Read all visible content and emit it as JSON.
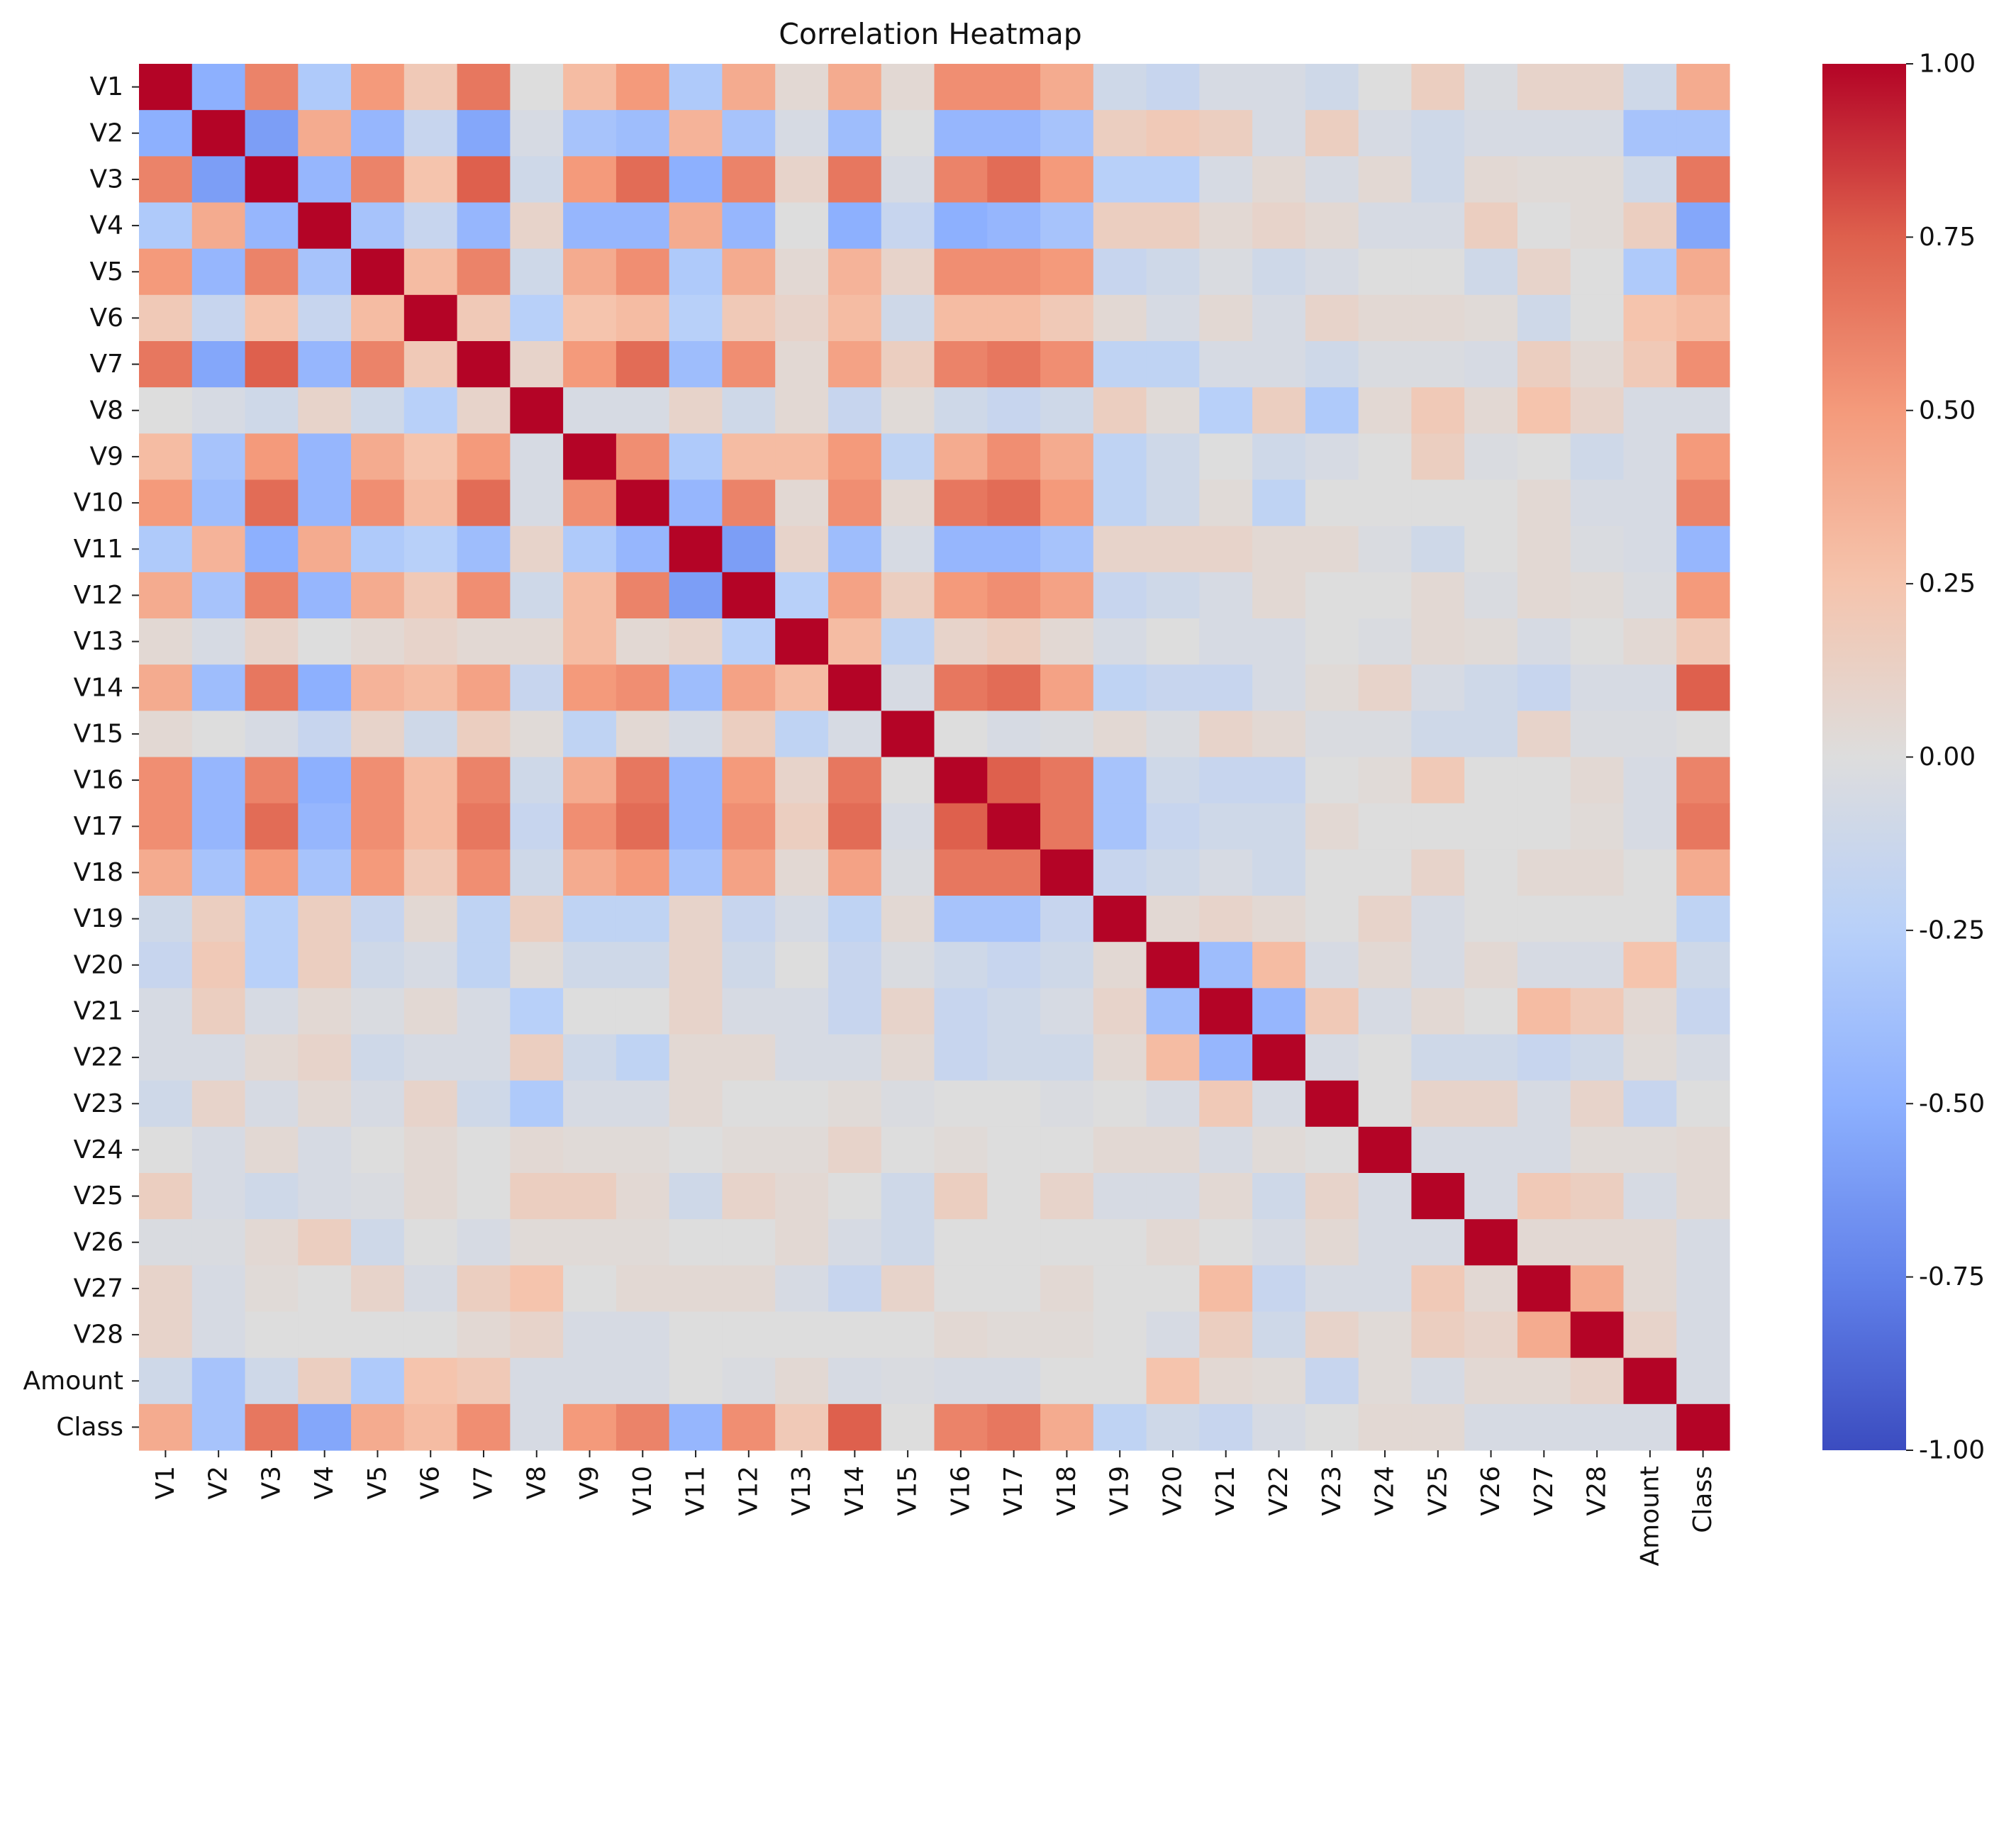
{
  "chart_data": {
    "type": "heatmap",
    "title": "Correlation Heatmap",
    "xlabel": "",
    "ylabel": "",
    "labels": [
      "V1",
      "V2",
      "V3",
      "V4",
      "V5",
      "V6",
      "V7",
      "V8",
      "V9",
      "V10",
      "V11",
      "V12",
      "V13",
      "V14",
      "V15",
      "V16",
      "V17",
      "V18",
      "V19",
      "V20",
      "V21",
      "V22",
      "V23",
      "V24",
      "V25",
      "V26",
      "V27",
      "V28",
      "Amount",
      "Class"
    ],
    "colormap": "coolwarm",
    "vmin": -1.0,
    "vmax": 1.0,
    "colorbar_ticks": [
      1.0,
      0.75,
      0.5,
      0.25,
      0.0,
      -0.25,
      -0.5,
      -0.75,
      -1.0
    ],
    "colorbar_tick_labels": [
      "1.00",
      "0.75",
      "0.50",
      "0.25",
      "0.00",
      "-0.25",
      "-0.50",
      "-0.75",
      "-1.00"
    ],
    "matrix": [
      [
        1.0,
        -0.5,
        0.6,
        -0.3,
        0.5,
        0.2,
        0.65,
        0.0,
        0.3,
        0.5,
        -0.3,
        0.4,
        0.05,
        0.4,
        0.05,
        0.55,
        0.55,
        0.4,
        -0.1,
        -0.15,
        -0.05,
        -0.05,
        -0.1,
        0.0,
        0.15,
        -0.03,
        0.1,
        0.1,
        -0.1,
        0.4
      ],
      [
        -0.5,
        1.0,
        -0.6,
        0.4,
        -0.45,
        -0.15,
        -0.55,
        -0.05,
        -0.35,
        -0.4,
        0.35,
        -0.35,
        -0.05,
        -0.4,
        0.0,
        -0.45,
        -0.45,
        -0.35,
        0.15,
        0.2,
        0.15,
        -0.05,
        0.15,
        -0.05,
        -0.1,
        -0.05,
        -0.05,
        -0.05,
        -0.35,
        -0.35
      ],
      [
        0.6,
        -0.6,
        1.0,
        -0.45,
        0.6,
        0.25,
        0.75,
        -0.1,
        0.5,
        0.7,
        -0.5,
        0.6,
        0.1,
        0.65,
        -0.05,
        0.6,
        0.7,
        0.5,
        -0.25,
        -0.25,
        -0.05,
        0.05,
        -0.05,
        0.05,
        -0.1,
        0.05,
        0.03,
        0.03,
        -0.1,
        0.65
      ],
      [
        -0.3,
        0.4,
        -0.45,
        1.0,
        -0.35,
        -0.15,
        -0.45,
        0.1,
        -0.45,
        -0.45,
        0.4,
        -0.45,
        0.0,
        -0.5,
        -0.15,
        -0.5,
        -0.45,
        -0.35,
        0.15,
        0.15,
        0.05,
        0.1,
        0.05,
        -0.05,
        -0.05,
        0.15,
        0.0,
        0.03,
        0.15,
        -0.55
      ],
      [
        0.5,
        -0.45,
        0.6,
        -0.35,
        1.0,
        0.3,
        0.6,
        -0.1,
        0.4,
        0.55,
        -0.3,
        0.4,
        0.05,
        0.35,
        0.1,
        0.55,
        0.55,
        0.5,
        -0.15,
        -0.1,
        -0.03,
        -0.1,
        -0.05,
        0.0,
        0.0,
        -0.1,
        0.1,
        0.0,
        -0.3,
        0.4
      ],
      [
        0.2,
        -0.15,
        0.25,
        -0.15,
        0.3,
        1.0,
        0.2,
        -0.25,
        0.25,
        0.3,
        -0.25,
        0.2,
        0.1,
        0.3,
        -0.1,
        0.3,
        0.3,
        0.2,
        0.05,
        -0.05,
        0.05,
        -0.05,
        0.1,
        0.05,
        0.05,
        0.03,
        -0.1,
        0.0,
        0.25,
        0.3
      ],
      [
        0.65,
        -0.55,
        0.75,
        -0.45,
        0.6,
        0.2,
        1.0,
        0.1,
        0.5,
        0.7,
        -0.4,
        0.55,
        0.05,
        0.45,
        0.15,
        0.6,
        0.65,
        0.55,
        -0.2,
        -0.2,
        -0.05,
        -0.05,
        -0.1,
        -0.03,
        -0.03,
        -0.05,
        0.15,
        0.05,
        0.2,
        0.55
      ],
      [
        0.0,
        -0.05,
        -0.1,
        0.1,
        -0.1,
        -0.25,
        0.1,
        1.0,
        -0.05,
        -0.05,
        0.1,
        -0.1,
        0.05,
        -0.15,
        0.03,
        -0.1,
        -0.15,
        -0.1,
        0.15,
        0.03,
        -0.25,
        0.15,
        -0.3,
        0.05,
        0.2,
        0.05,
        0.25,
        0.1,
        -0.05,
        -0.05
      ],
      [
        0.3,
        -0.35,
        0.5,
        -0.45,
        0.4,
        0.25,
        0.5,
        -0.05,
        1.0,
        0.55,
        -0.3,
        0.3,
        0.3,
        0.5,
        -0.2,
        0.4,
        0.55,
        0.4,
        -0.2,
        -0.1,
        0.0,
        -0.1,
        -0.05,
        0.0,
        0.15,
        -0.03,
        0.0,
        -0.1,
        -0.05,
        0.5
      ],
      [
        0.5,
        -0.4,
        0.7,
        -0.45,
        0.55,
        0.3,
        0.7,
        -0.05,
        0.55,
        1.0,
        -0.45,
        0.6,
        0.05,
        0.55,
        0.05,
        0.65,
        0.7,
        0.5,
        -0.2,
        -0.1,
        0.03,
        -0.2,
        0.0,
        0.0,
        0.0,
        0.0,
        0.05,
        -0.05,
        -0.05,
        0.6
      ],
      [
        -0.3,
        0.35,
        -0.5,
        0.4,
        -0.3,
        -0.25,
        -0.4,
        0.1,
        -0.3,
        -0.45,
        1.0,
        -0.6,
        0.1,
        -0.4,
        -0.05,
        -0.45,
        -0.45,
        -0.35,
        0.1,
        0.1,
        0.1,
        0.05,
        0.05,
        -0.03,
        -0.1,
        0.0,
        0.05,
        -0.03,
        -0.05,
        -0.45
      ],
      [
        0.4,
        -0.35,
        0.6,
        -0.45,
        0.4,
        0.2,
        0.55,
        -0.1,
        0.3,
        0.6,
        -0.6,
        1.0,
        -0.25,
        0.45,
        0.15,
        0.5,
        0.55,
        0.45,
        -0.15,
        -0.1,
        -0.05,
        0.05,
        0.0,
        0.0,
        0.05,
        -0.03,
        0.05,
        0.03,
        -0.03,
        0.5
      ],
      [
        0.05,
        -0.05,
        0.1,
        0.0,
        0.05,
        0.1,
        0.05,
        0.05,
        0.3,
        0.05,
        0.1,
        -0.25,
        1.0,
        0.3,
        -0.2,
        0.1,
        0.15,
        0.05,
        -0.05,
        0.0,
        -0.05,
        -0.05,
        0.0,
        -0.03,
        0.05,
        0.03,
        -0.05,
        0.0,
        0.05,
        0.2
      ],
      [
        0.4,
        -0.4,
        0.65,
        -0.5,
        0.35,
        0.3,
        0.45,
        -0.15,
        0.5,
        0.55,
        -0.4,
        0.45,
        0.3,
        1.0,
        -0.05,
        0.65,
        0.7,
        0.45,
        -0.2,
        -0.15,
        -0.15,
        -0.05,
        0.03,
        0.1,
        -0.05,
        -0.1,
        -0.15,
        -0.05,
        -0.05,
        0.75
      ],
      [
        0.05,
        0.0,
        -0.05,
        -0.15,
        0.1,
        -0.1,
        0.15,
        0.03,
        -0.2,
        0.05,
        -0.05,
        0.15,
        -0.2,
        -0.05,
        1.0,
        0.0,
        -0.05,
        -0.03,
        0.05,
        -0.03,
        0.1,
        0.05,
        -0.03,
        -0.03,
        -0.1,
        -0.1,
        0.1,
        -0.03,
        -0.03,
        0.0
      ],
      [
        0.55,
        -0.45,
        0.6,
        -0.5,
        0.55,
        0.3,
        0.6,
        -0.1,
        0.4,
        0.65,
        -0.45,
        0.5,
        0.1,
        0.65,
        0.0,
        1.0,
        0.75,
        0.65,
        -0.35,
        -0.1,
        -0.15,
        -0.15,
        0.0,
        0.03,
        0.2,
        0.0,
        0.0,
        0.05,
        -0.05,
        0.6
      ],
      [
        0.55,
        -0.45,
        0.7,
        -0.45,
        0.55,
        0.3,
        0.65,
        -0.15,
        0.55,
        0.7,
        -0.45,
        0.55,
        0.15,
        0.7,
        -0.05,
        0.75,
        1.0,
        0.65,
        -0.35,
        -0.15,
        -0.1,
        -0.1,
        0.05,
        0.0,
        0.0,
        0.0,
        0.0,
        0.03,
        -0.05,
        0.65
      ],
      [
        0.4,
        -0.35,
        0.5,
        -0.35,
        0.5,
        0.2,
        0.55,
        -0.1,
        0.4,
        0.5,
        -0.35,
        0.45,
        0.05,
        0.45,
        -0.03,
        0.65,
        0.65,
        1.0,
        -0.15,
        -0.1,
        -0.05,
        -0.1,
        0.0,
        0.0,
        0.1,
        0.0,
        0.05,
        0.05,
        0.0,
        0.4
      ],
      [
        -0.1,
        0.15,
        -0.25,
        0.15,
        -0.15,
        0.05,
        -0.2,
        0.15,
        -0.2,
        -0.2,
        0.1,
        -0.15,
        -0.05,
        -0.2,
        0.05,
        -0.35,
        -0.35,
        -0.15,
        1.0,
        0.05,
        0.1,
        0.05,
        0.0,
        0.1,
        -0.05,
        0.0,
        0.0,
        0.0,
        0.0,
        -0.2
      ],
      [
        -0.15,
        0.2,
        -0.25,
        0.15,
        -0.1,
        -0.05,
        -0.2,
        0.03,
        -0.1,
        -0.1,
        0.1,
        -0.1,
        0.0,
        -0.15,
        -0.03,
        -0.1,
        -0.15,
        -0.1,
        0.05,
        1.0,
        -0.4,
        0.3,
        -0.05,
        0.05,
        -0.05,
        0.05,
        -0.05,
        -0.05,
        0.25,
        -0.1
      ],
      [
        -0.05,
        0.15,
        -0.05,
        0.05,
        -0.03,
        0.05,
        -0.05,
        -0.25,
        0.0,
        0.0,
        0.1,
        -0.05,
        -0.05,
        -0.15,
        0.1,
        -0.15,
        -0.1,
        -0.05,
        0.1,
        -0.4,
        1.0,
        -0.45,
        0.2,
        -0.05,
        0.05,
        0.0,
        0.3,
        0.2,
        0.05,
        -0.15
      ],
      [
        -0.05,
        -0.05,
        0.05,
        0.1,
        -0.1,
        -0.05,
        -0.05,
        0.15,
        -0.1,
        -0.2,
        0.05,
        0.05,
        -0.05,
        -0.05,
        0.05,
        -0.15,
        -0.1,
        -0.1,
        0.05,
        0.3,
        -0.45,
        1.0,
        -0.05,
        0.0,
        -0.1,
        -0.1,
        -0.15,
        -0.1,
        0.03,
        -0.05
      ],
      [
        -0.1,
        0.1,
        -0.05,
        0.05,
        -0.05,
        0.1,
        -0.1,
        -0.3,
        -0.05,
        -0.05,
        0.05,
        0.0,
        0.0,
        0.03,
        -0.03,
        0.0,
        0.0,
        -0.03,
        0.0,
        -0.05,
        0.2,
        -0.05,
        1.0,
        0.0,
        0.1,
        0.1,
        -0.05,
        0.1,
        -0.15,
        0.0
      ],
      [
        0.0,
        -0.05,
        0.05,
        -0.05,
        0.0,
        0.05,
        0.0,
        0.05,
        0.03,
        0.03,
        0.0,
        0.03,
        0.03,
        0.1,
        0.0,
        0.03,
        0.0,
        0.0,
        0.05,
        0.05,
        -0.05,
        0.03,
        0.0,
        1.0,
        -0.05,
        -0.05,
        -0.05,
        0.03,
        0.03,
        0.05
      ],
      [
        0.15,
        -0.05,
        -0.1,
        -0.05,
        -0.03,
        0.05,
        0.0,
        0.15,
        0.15,
        0.05,
        -0.1,
        0.1,
        0.05,
        0.0,
        -0.1,
        0.15,
        0.0,
        0.1,
        -0.05,
        -0.05,
        0.05,
        -0.1,
        0.1,
        -0.05,
        1.0,
        -0.05,
        0.2,
        0.15,
        -0.05,
        0.05
      ],
      [
        -0.03,
        -0.03,
        0.05,
        0.15,
        -0.1,
        0.0,
        -0.05,
        0.03,
        0.03,
        0.03,
        0.0,
        0.0,
        0.05,
        -0.05,
        -0.1,
        0.0,
        0.0,
        0.0,
        0.0,
        0.05,
        0.0,
        -0.05,
        0.05,
        -0.05,
        -0.05,
        1.0,
        0.05,
        0.05,
        0.05,
        -0.05
      ],
      [
        0.1,
        -0.05,
        0.03,
        0.0,
        0.1,
        -0.05,
        0.15,
        0.25,
        0.0,
        0.05,
        0.05,
        0.05,
        -0.05,
        -0.15,
        0.1,
        0.0,
        0.0,
        0.05,
        0.0,
        0.0,
        0.3,
        -0.15,
        -0.05,
        -0.05,
        0.2,
        0.05,
        1.0,
        0.4,
        0.05,
        -0.05
      ],
      [
        0.1,
        -0.05,
        0.0,
        0.0,
        0.0,
        0.0,
        0.05,
        0.1,
        -0.05,
        -0.05,
        0.0,
        0.0,
        0.0,
        0.0,
        0.0,
        0.05,
        0.03,
        0.03,
        0.0,
        -0.05,
        0.15,
        -0.1,
        0.1,
        0.03,
        0.15,
        0.1,
        0.4,
        1.0,
        0.1,
        -0.05
      ],
      [
        -0.1,
        -0.35,
        -0.1,
        0.15,
        -0.3,
        0.25,
        0.2,
        -0.05,
        -0.05,
        -0.05,
        0.0,
        -0.03,
        0.05,
        -0.05,
        -0.03,
        -0.05,
        -0.05,
        0.0,
        0.0,
        0.25,
        0.05,
        0.03,
        -0.15,
        0.03,
        -0.05,
        0.05,
        0.05,
        0.1,
        1.0,
        -0.05
      ],
      [
        0.4,
        -0.35,
        0.65,
        -0.55,
        0.4,
        0.3,
        0.55,
        -0.05,
        0.5,
        0.6,
        -0.45,
        0.55,
        0.2,
        0.75,
        0.0,
        0.6,
        0.65,
        0.4,
        -0.2,
        -0.1,
        -0.15,
        -0.05,
        0.0,
        0.05,
        0.05,
        -0.05,
        -0.05,
        -0.05,
        -0.05,
        1.0
      ]
    ]
  }
}
